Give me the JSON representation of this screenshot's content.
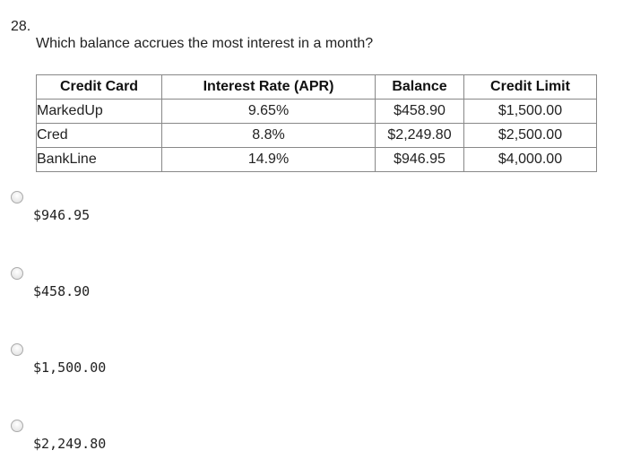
{
  "question": {
    "number": "28.",
    "text": "Which balance accrues the most interest in a month?"
  },
  "table": {
    "headers": [
      "Credit Card",
      "Interest Rate (APR)",
      "Balance",
      "Credit Limit"
    ],
    "rows": [
      [
        "MarkedUp",
        "9.65%",
        "$458.90",
        "$1,500.00"
      ],
      [
        "Cred",
        "8.8%",
        "$2,249.80",
        "$2,500.00"
      ],
      [
        "BankLine",
        "14.9%",
        "$946.95",
        "$4,000.00"
      ]
    ]
  },
  "options": [
    "$946.95",
    "$458.90",
    "$1,500.00",
    "$2,249.80"
  ]
}
